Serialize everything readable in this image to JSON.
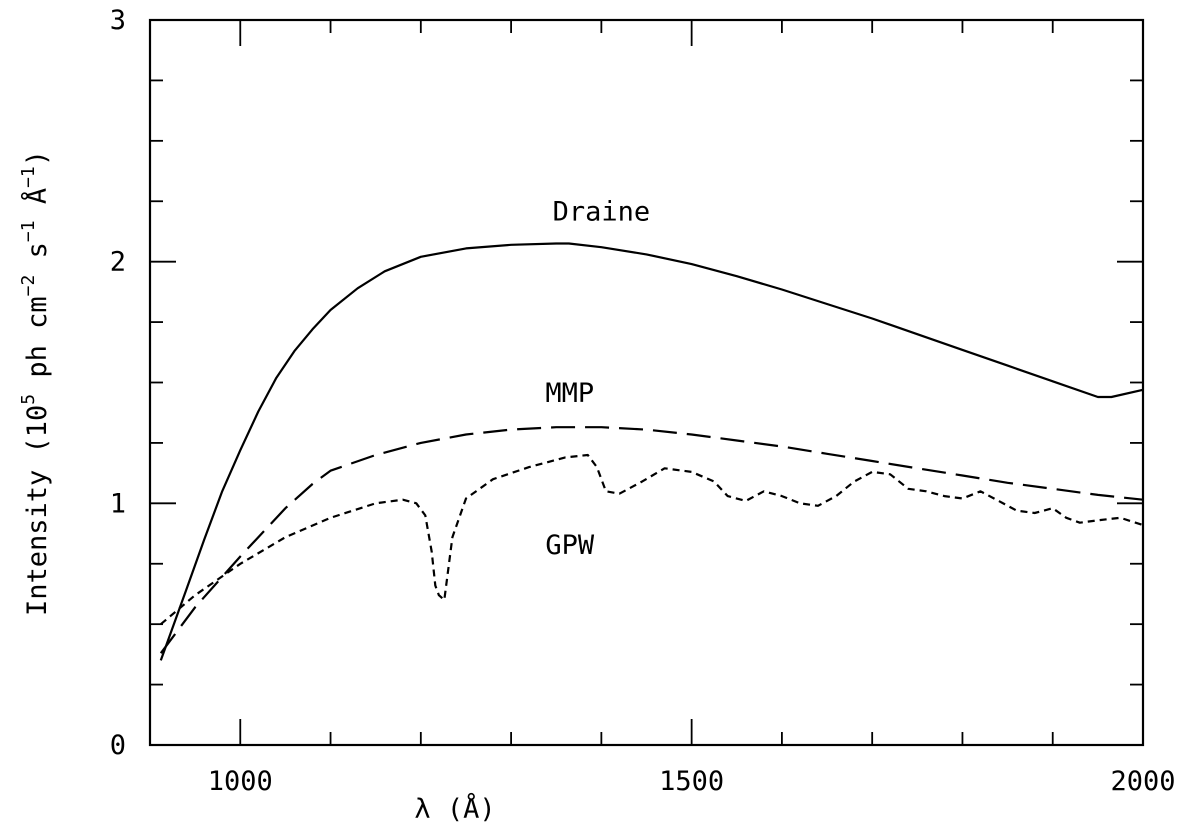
{
  "chart_data": {
    "type": "line",
    "title": "",
    "xlabel": "λ (Å)",
    "ylabel_parts": [
      "Intensity (10",
      "5",
      " ph cm",
      "−2",
      " s",
      "−1",
      " Å",
      "−1",
      ")"
    ],
    "xlim": [
      900,
      2000
    ],
    "ylim": [
      0,
      3
    ],
    "x_ticks": [
      1000,
      1500,
      2000
    ],
    "x_tick_labels": [
      "1000",
      "1500",
      "2000"
    ],
    "x_minor_step": 100,
    "y_ticks": [
      0,
      1,
      2,
      3
    ],
    "y_tick_labels": [
      "0",
      "1",
      "2",
      "3"
    ],
    "y_minor_step": 0.25,
    "grid": false,
    "legend": "inline labels",
    "series": [
      {
        "name": "Draine",
        "style": "solid",
        "label_at": [
          1400,
          2.17
        ],
        "x": [
          912,
          940,
          960,
          980,
          1000,
          1020,
          1040,
          1060,
          1080,
          1100,
          1130,
          1160,
          1200,
          1250,
          1300,
          1350,
          1364,
          1400,
          1450,
          1500,
          1550,
          1600,
          1650,
          1700,
          1750,
          1800,
          1850,
          1900,
          1950,
          1965,
          2000
        ],
        "y": [
          0.35,
          0.64,
          0.85,
          1.05,
          1.22,
          1.38,
          1.52,
          1.63,
          1.72,
          1.8,
          1.89,
          1.96,
          2.02,
          2.055,
          2.07,
          2.075,
          2.075,
          2.06,
          2.03,
          1.99,
          1.94,
          1.885,
          1.825,
          1.765,
          1.7,
          1.635,
          1.57,
          1.505,
          1.44,
          1.44,
          1.47
        ]
      },
      {
        "name": "MMP",
        "style": "long-dash",
        "label_at": [
          1365,
          1.42
        ],
        "x": [
          912,
          950,
          1000,
          1050,
          1080,
          1100,
          1150,
          1200,
          1250,
          1300,
          1350,
          1400,
          1450,
          1500,
          1550,
          1600,
          1650,
          1700,
          1750,
          1800,
          1850,
          1900,
          1950,
          2000
        ],
        "y": [
          0.38,
          0.57,
          0.78,
          0.98,
          1.08,
          1.135,
          1.2,
          1.25,
          1.285,
          1.305,
          1.315,
          1.315,
          1.305,
          1.285,
          1.26,
          1.235,
          1.205,
          1.175,
          1.145,
          1.115,
          1.085,
          1.06,
          1.035,
          1.015
        ]
      },
      {
        "name": "GPW",
        "style": "short-dash",
        "label_at": [
          1365,
          0.79
        ],
        "x": [
          912,
          950,
          1000,
          1050,
          1100,
          1150,
          1180,
          1195,
          1205,
          1212,
          1216,
          1220,
          1226,
          1235,
          1250,
          1280,
          1320,
          1360,
          1385,
          1395,
          1405,
          1420,
          1445,
          1470,
          1500,
          1525,
          1540,
          1560,
          1580,
          1600,
          1620,
          1640,
          1660,
          1680,
          1700,
          1720,
          1740,
          1760,
          1780,
          1800,
          1820,
          1840,
          1860,
          1880,
          1900,
          1915,
          1930,
          1950,
          1975,
          2000
        ],
        "y": [
          0.5,
          0.62,
          0.75,
          0.86,
          0.94,
          1.0,
          1.015,
          1.0,
          0.95,
          0.8,
          0.66,
          0.62,
          0.6,
          0.86,
          1.02,
          1.1,
          1.15,
          1.19,
          1.2,
          1.15,
          1.05,
          1.04,
          1.09,
          1.145,
          1.13,
          1.09,
          1.03,
          1.01,
          1.05,
          1.03,
          1.0,
          0.99,
          1.03,
          1.09,
          1.13,
          1.12,
          1.06,
          1.05,
          1.03,
          1.02,
          1.05,
          1.01,
          0.97,
          0.96,
          0.98,
          0.94,
          0.92,
          0.93,
          0.94,
          0.91
        ]
      }
    ]
  }
}
